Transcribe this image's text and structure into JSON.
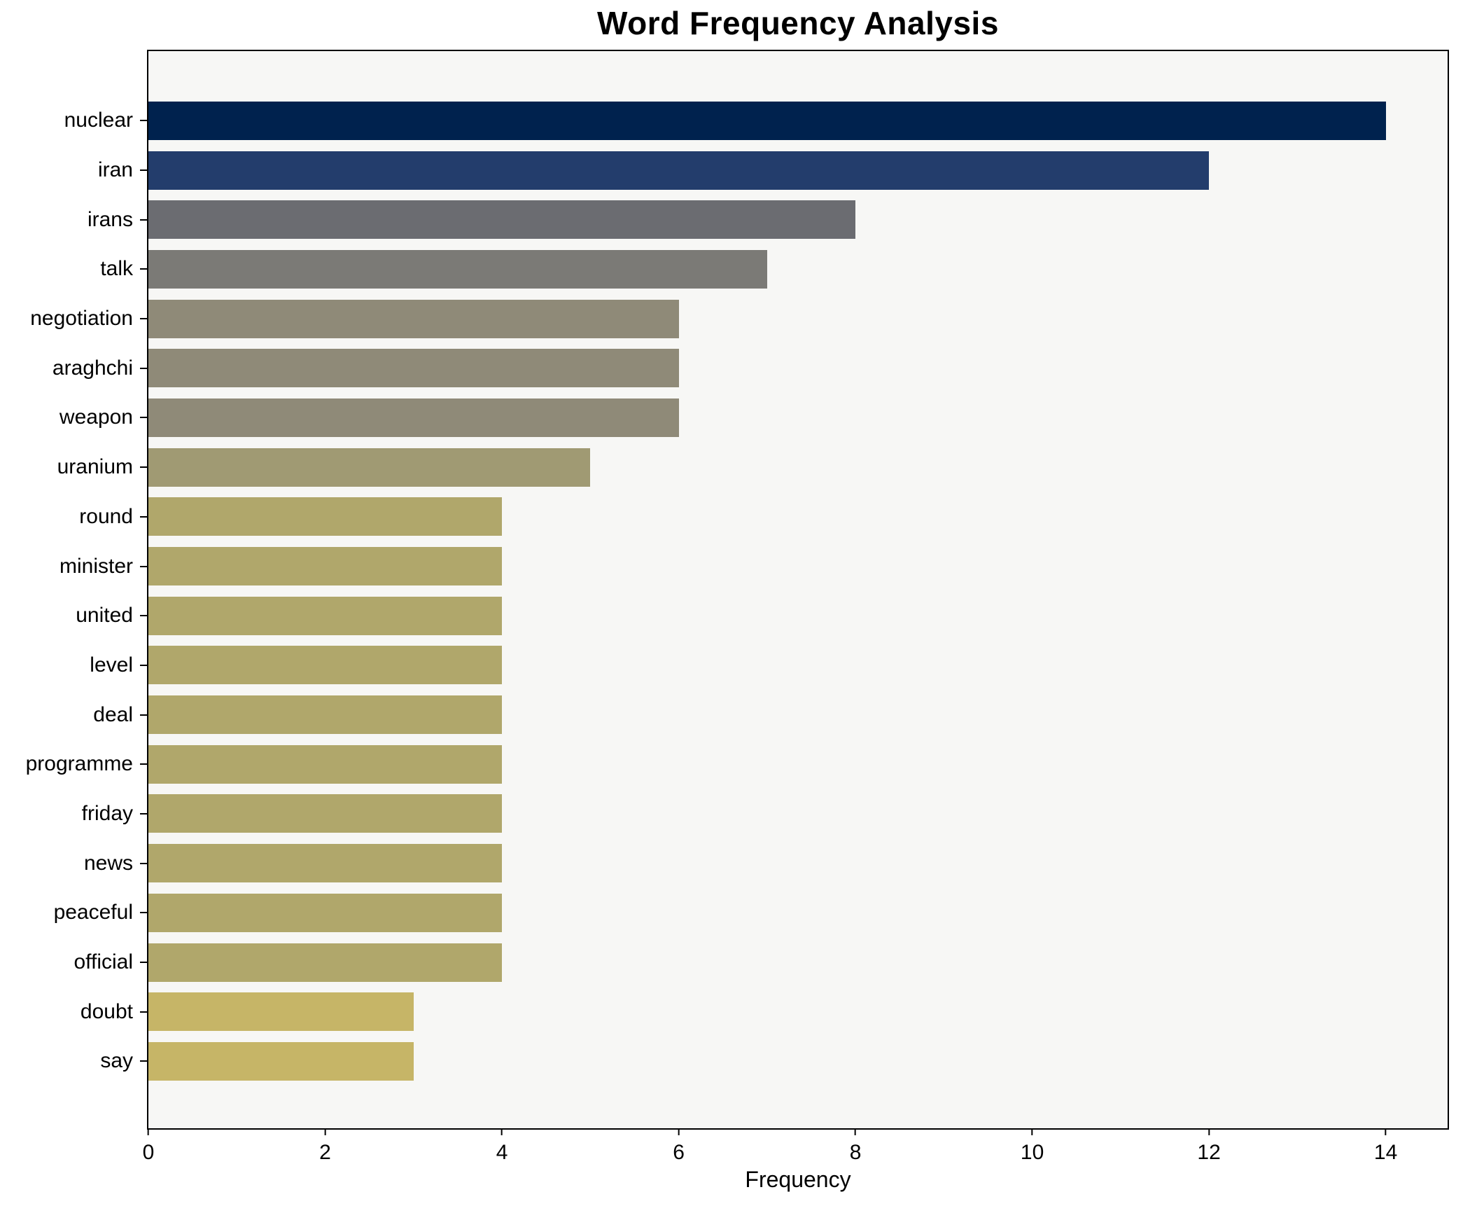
{
  "chart_data": {
    "type": "bar",
    "orientation": "horizontal",
    "title": "Word Frequency Analysis",
    "xlabel": "Frequency",
    "ylabel": "",
    "categories": [
      "nuclear",
      "iran",
      "irans",
      "talk",
      "negotiation",
      "araghchi",
      "weapon",
      "uranium",
      "round",
      "minister",
      "united",
      "level",
      "deal",
      "programme",
      "friday",
      "news",
      "peaceful",
      "official",
      "doubt",
      "say"
    ],
    "values": [
      14,
      12,
      8,
      7,
      6,
      6,
      6,
      5,
      4,
      4,
      4,
      4,
      4,
      4,
      4,
      4,
      4,
      4,
      3,
      3
    ],
    "bar_colors": [
      "#00224e",
      "#233d6c",
      "#6b6c71",
      "#7b7a76",
      "#8f8a78",
      "#8f8a78",
      "#8f8a78",
      "#a09a73",
      "#b0a76b",
      "#b0a76b",
      "#b0a76b",
      "#b0a76b",
      "#b0a76b",
      "#b0a76b",
      "#b0a76b",
      "#b0a76b",
      "#b0a76b",
      "#b0a76b",
      "#c6b567",
      "#c6b567"
    ],
    "xlim": [
      0,
      14.7
    ],
    "xticks": [
      0,
      2,
      4,
      6,
      8,
      10,
      12,
      14
    ],
    "grid": false,
    "legend": null,
    "plot_background": "#f7f7f5",
    "figure_background": "#ffffff",
    "colormap": "cividis"
  }
}
